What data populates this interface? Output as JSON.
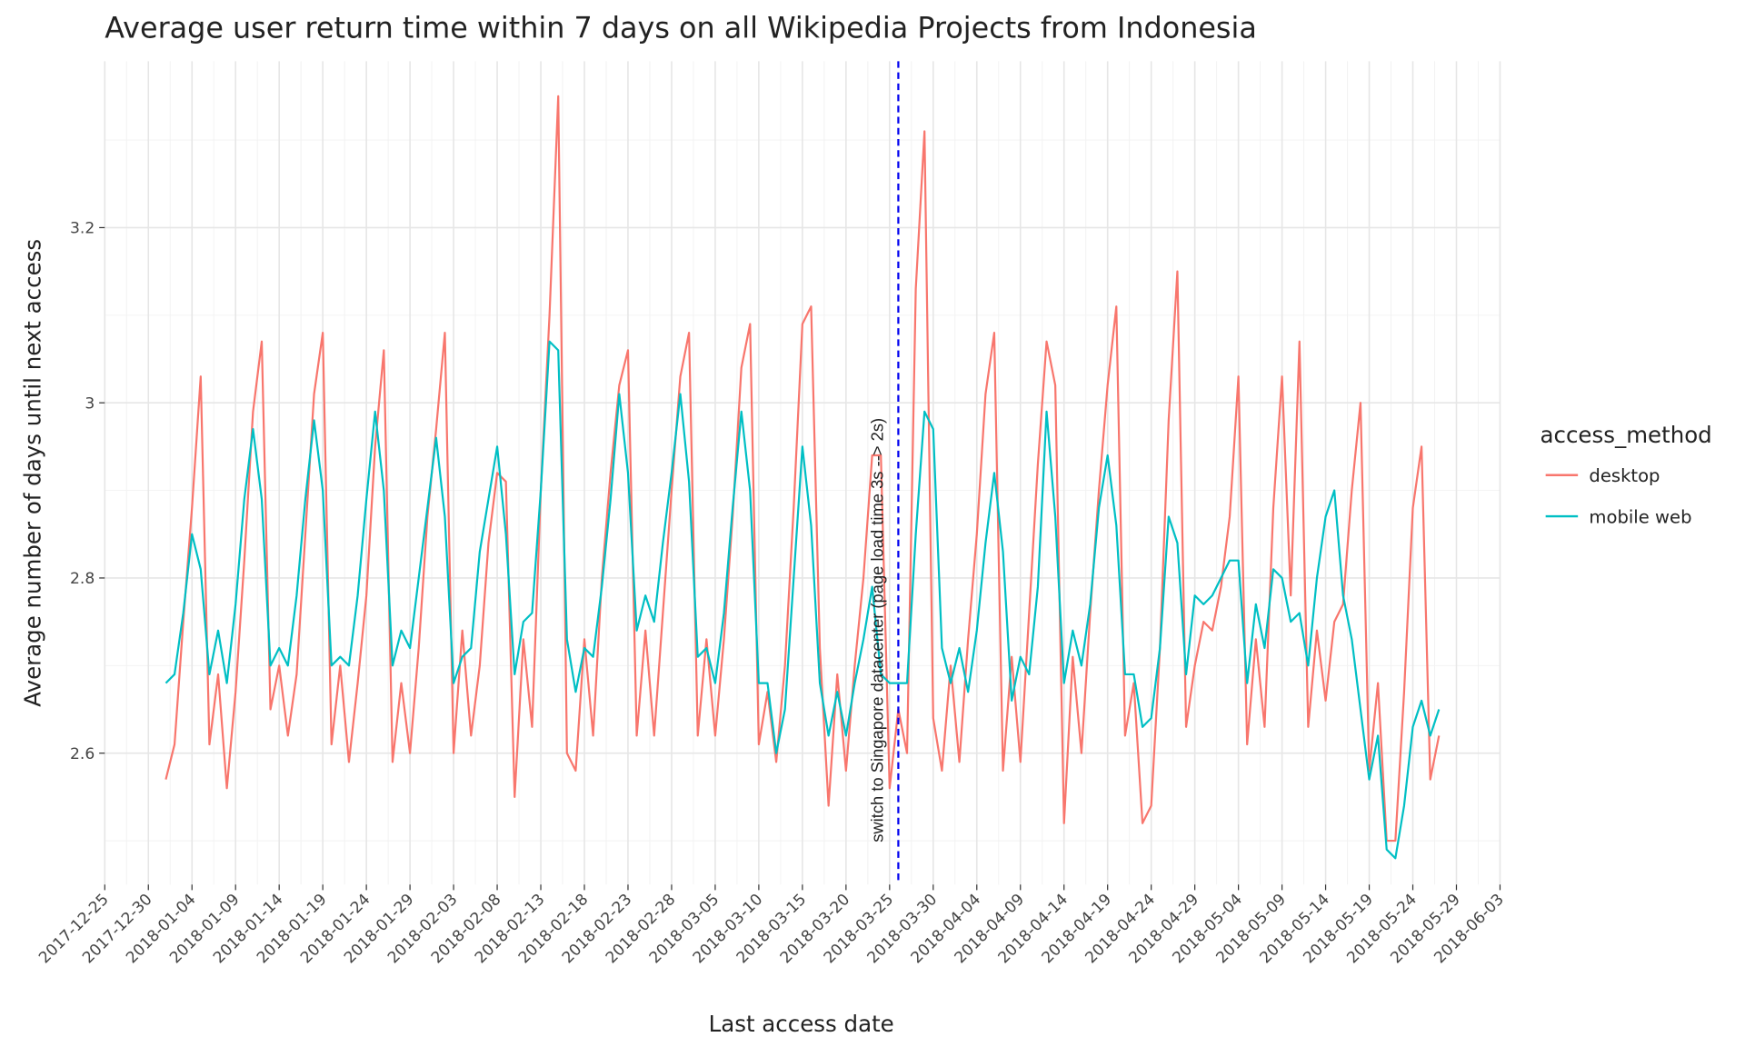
{
  "chart_data": {
    "type": "line",
    "title": "Average user return time within 7 days on all Wikipedia Projects from Indonesia",
    "x_label": "Last access date",
    "y_label": "Average number of days until next access",
    "legend_title": "access_method",
    "legend_position": "right",
    "grid": true,
    "x": [
      "2018-01-01",
      "2018-01-02",
      "2018-01-03",
      "2018-01-04",
      "2018-01-05",
      "2018-01-06",
      "2018-01-07",
      "2018-01-08",
      "2018-01-09",
      "2018-01-10",
      "2018-01-11",
      "2018-01-12",
      "2018-01-13",
      "2018-01-14",
      "2018-01-15",
      "2018-01-16",
      "2018-01-17",
      "2018-01-18",
      "2018-01-19",
      "2018-01-20",
      "2018-01-21",
      "2018-01-22",
      "2018-01-23",
      "2018-01-24",
      "2018-01-25",
      "2018-01-26",
      "2018-01-27",
      "2018-01-28",
      "2018-01-29",
      "2018-01-30",
      "2018-01-31",
      "2018-02-01",
      "2018-02-02",
      "2018-02-03",
      "2018-02-04",
      "2018-02-05",
      "2018-02-06",
      "2018-02-07",
      "2018-02-08",
      "2018-02-09",
      "2018-02-10",
      "2018-02-11",
      "2018-02-12",
      "2018-02-13",
      "2018-02-14",
      "2018-02-15",
      "2018-02-16",
      "2018-02-17",
      "2018-02-18",
      "2018-02-19",
      "2018-02-20",
      "2018-02-21",
      "2018-02-22",
      "2018-02-23",
      "2018-02-24",
      "2018-02-25",
      "2018-02-26",
      "2018-02-27",
      "2018-02-28",
      "2018-03-01",
      "2018-03-02",
      "2018-03-03",
      "2018-03-04",
      "2018-03-05",
      "2018-03-06",
      "2018-03-07",
      "2018-03-08",
      "2018-03-09",
      "2018-03-10",
      "2018-03-11",
      "2018-03-12",
      "2018-03-13",
      "2018-03-14",
      "2018-03-15",
      "2018-03-16",
      "2018-03-17",
      "2018-03-18",
      "2018-03-19",
      "2018-03-20",
      "2018-03-21",
      "2018-03-22",
      "2018-03-23",
      "2018-03-24",
      "2018-03-25",
      "2018-03-26",
      "2018-03-27",
      "2018-03-28",
      "2018-03-29",
      "2018-03-30",
      "2018-03-31",
      "2018-04-01",
      "2018-04-02",
      "2018-04-03",
      "2018-04-04",
      "2018-04-05",
      "2018-04-06",
      "2018-04-07",
      "2018-04-08",
      "2018-04-09",
      "2018-04-10",
      "2018-04-11",
      "2018-04-12",
      "2018-04-13",
      "2018-04-14",
      "2018-04-15",
      "2018-04-16",
      "2018-04-17",
      "2018-04-18",
      "2018-04-19",
      "2018-04-20",
      "2018-04-21",
      "2018-04-22",
      "2018-04-23",
      "2018-04-24",
      "2018-04-25",
      "2018-04-26",
      "2018-04-27",
      "2018-04-28",
      "2018-04-29",
      "2018-04-30",
      "2018-05-01",
      "2018-05-02",
      "2018-05-03",
      "2018-05-04",
      "2018-05-05",
      "2018-05-06",
      "2018-05-07",
      "2018-05-08",
      "2018-05-09",
      "2018-05-10",
      "2018-05-11",
      "2018-05-12",
      "2018-05-13",
      "2018-05-14",
      "2018-05-15",
      "2018-05-16",
      "2018-05-17",
      "2018-05-18",
      "2018-05-19",
      "2018-05-20",
      "2018-05-21",
      "2018-05-22",
      "2018-05-23",
      "2018-05-24",
      "2018-05-25",
      "2018-05-26",
      "2018-05-27"
    ],
    "series": [
      {
        "name": "desktop",
        "color": "#F8766D",
        "values": [
          2.57,
          2.61,
          2.75,
          2.88,
          3.03,
          2.61,
          2.69,
          2.56,
          2.67,
          2.82,
          2.99,
          3.07,
          2.65,
          2.7,
          2.62,
          2.69,
          2.85,
          3.01,
          3.08,
          2.61,
          2.7,
          2.59,
          2.68,
          2.78,
          2.95,
          3.06,
          2.59,
          2.68,
          2.6,
          2.72,
          2.87,
          2.97,
          3.08,
          2.6,
          2.74,
          2.62,
          2.7,
          2.84,
          2.92,
          2.91,
          2.55,
          2.73,
          2.63,
          2.9,
          3.1,
          3.35,
          2.6,
          2.58,
          2.73,
          2.62,
          2.8,
          2.92,
          3.02,
          3.06,
          2.62,
          2.74,
          2.62,
          2.76,
          2.9,
          3.03,
          3.08,
          2.62,
          2.73,
          2.62,
          2.73,
          2.87,
          3.04,
          3.09,
          2.61,
          2.67,
          2.59,
          2.7,
          2.88,
          3.09,
          3.11,
          2.72,
          2.54,
          2.69,
          2.58,
          2.7,
          2.8,
          2.94,
          2.94,
          2.56,
          2.65,
          2.6,
          3.13,
          3.31,
          2.64,
          2.58,
          2.7,
          2.59,
          2.73,
          2.85,
          3.01,
          3.08,
          2.58,
          2.71,
          2.59,
          2.76,
          2.93,
          3.07,
          3.02,
          2.52,
          2.71,
          2.6,
          2.76,
          2.9,
          3.02,
          3.11,
          2.62,
          2.68,
          2.52,
          2.54,
          2.72,
          2.98,
          3.15,
          2.63,
          2.7,
          2.75,
          2.74,
          2.79,
          2.87,
          3.03,
          2.61,
          2.73,
          2.63,
          2.88,
          3.03,
          2.78,
          3.07,
          2.63,
          2.74,
          2.66,
          2.75,
          2.77,
          2.9,
          3.0,
          2.58,
          2.68,
          2.5,
          2.5,
          2.67,
          2.88,
          2.95,
          2.57,
          2.62
        ]
      },
      {
        "name": "mobile web",
        "color": "#00BFC4",
        "values": [
          2.68,
          2.69,
          2.76,
          2.85,
          2.81,
          2.69,
          2.74,
          2.68,
          2.77,
          2.89,
          2.97,
          2.89,
          2.7,
          2.72,
          2.7,
          2.78,
          2.89,
          2.98,
          2.9,
          2.7,
          2.71,
          2.7,
          2.78,
          2.89,
          2.99,
          2.9,
          2.7,
          2.74,
          2.72,
          2.8,
          2.88,
          2.96,
          2.87,
          2.68,
          2.71,
          2.72,
          2.83,
          2.89,
          2.95,
          2.85,
          2.69,
          2.75,
          2.76,
          2.9,
          3.07,
          3.06,
          2.73,
          2.67,
          2.72,
          2.71,
          2.79,
          2.89,
          3.01,
          2.92,
          2.74,
          2.78,
          2.75,
          2.84,
          2.92,
          3.01,
          2.91,
          2.71,
          2.72,
          2.68,
          2.76,
          2.88,
          2.99,
          2.9,
          2.68,
          2.68,
          2.6,
          2.65,
          2.8,
          2.95,
          2.86,
          2.68,
          2.62,
          2.67,
          2.62,
          2.68,
          2.73,
          2.79,
          2.69,
          2.68,
          2.68,
          2.68,
          2.85,
          2.99,
          2.97,
          2.72,
          2.68,
          2.72,
          2.67,
          2.74,
          2.84,
          2.92,
          2.83,
          2.66,
          2.71,
          2.69,
          2.79,
          2.99,
          2.87,
          2.68,
          2.74,
          2.7,
          2.77,
          2.88,
          2.94,
          2.86,
          2.69,
          2.69,
          2.63,
          2.64,
          2.72,
          2.87,
          2.84,
          2.69,
          2.78,
          2.77,
          2.78,
          2.8,
          2.82,
          2.82,
          2.68,
          2.77,
          2.72,
          2.81,
          2.8,
          2.75,
          2.76,
          2.7,
          2.8,
          2.87,
          2.9,
          2.78,
          2.73,
          2.65,
          2.57,
          2.62,
          2.49,
          2.48,
          2.54,
          2.63,
          2.66,
          2.62,
          2.65
        ]
      }
    ],
    "xlim": [
      "2017-12-25",
      "2018-06-03"
    ],
    "xticks": [
      "2017-12-25",
      "2017-12-30",
      "2018-01-04",
      "2018-01-09",
      "2018-01-14",
      "2018-01-19",
      "2018-01-24",
      "2018-01-29",
      "2018-02-03",
      "2018-02-08",
      "2018-02-13",
      "2018-02-18",
      "2018-02-23",
      "2018-02-28",
      "2018-03-05",
      "2018-03-10",
      "2018-03-15",
      "2018-03-20",
      "2018-03-25",
      "2018-03-30",
      "2018-04-04",
      "2018-04-09",
      "2018-04-14",
      "2018-04-19",
      "2018-04-24",
      "2018-04-29",
      "2018-05-04",
      "2018-05-09",
      "2018-05-14",
      "2018-05-19",
      "2018-05-24",
      "2018-05-29",
      "2018-06-03"
    ],
    "ylim": [
      2.45,
      3.39
    ],
    "yticks": [
      2.6,
      2.8,
      3,
      3.2
    ],
    "vline": {
      "x": "2018-03-26",
      "color": "#0000EE",
      "label": "switch to Singapore datacenter (page load time 3s --> 2s)"
    }
  }
}
